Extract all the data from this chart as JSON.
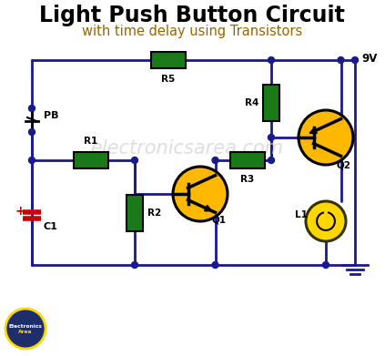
{
  "title": "Light Push Button Circuit",
  "subtitle": "with time delay using Transistors",
  "title_color": "#000000",
  "subtitle_color": "#996600",
  "bg_color": "#ffffff",
  "wire_color": "#1a1a8c",
  "component_fill": "#1a7a1a",
  "transistor_fill": "#FFB800",
  "lamp_fill": "#FFD700",
  "watermark": "electronicsarea.com",
  "watermark_color": "#d0d0d0",
  "node_color": "#1a1a8c",
  "ground_color": "#1a1a8c",
  "9V_label": "9V",
  "wire_lw": 2.0,
  "node_r": 3.5
}
